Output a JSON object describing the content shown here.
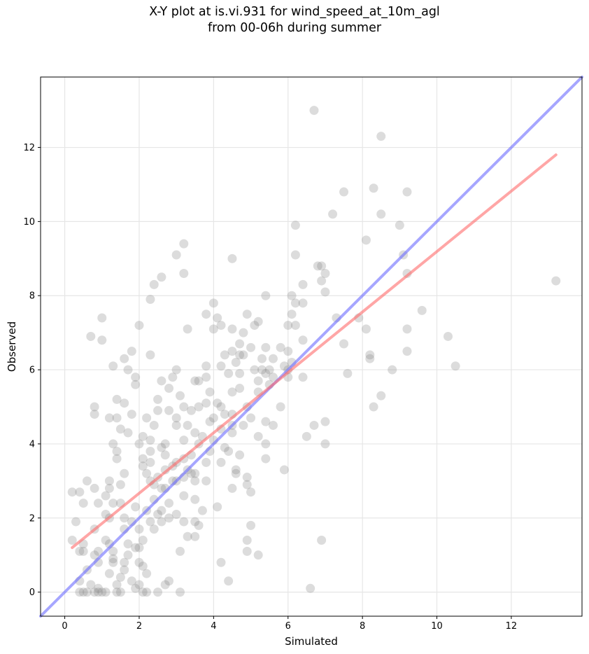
{
  "chart_data": {
    "type": "scatter",
    "title": "X-Y plot at is.vi.931 for wind_speed_at_10m_agl",
    "subtitle": "from 00-06h during summer",
    "xlabel": "Simulated",
    "ylabel": "Observed",
    "xlim": [
      -0.65,
      13.9
    ],
    "ylim": [
      -0.65,
      13.9
    ],
    "xticks": [
      0,
      2,
      4,
      6,
      8,
      10,
      12
    ],
    "yticks": [
      0,
      2,
      4,
      6,
      8,
      10,
      12
    ],
    "grid": true,
    "colors": {
      "points": "#808080",
      "regression": "#ff6b6b",
      "identity": "#6b6bff"
    },
    "regression_line": {
      "x": [
        0.2,
        13.2
      ],
      "y": [
        1.2,
        11.8
      ]
    },
    "identity_line": {
      "x": [
        -0.65,
        13.9
      ],
      "y": [
        -0.65,
        13.9
      ]
    },
    "points": [
      [
        6.7,
        13.0
      ],
      [
        8.5,
        12.3
      ],
      [
        8.3,
        10.9
      ],
      [
        7.5,
        10.8
      ],
      [
        9.2,
        10.8
      ],
      [
        7.2,
        10.2
      ],
      [
        8.5,
        10.2
      ],
      [
        6.2,
        9.9
      ],
      [
        9.0,
        9.9
      ],
      [
        8.1,
        9.5
      ],
      [
        3.2,
        9.4
      ],
      [
        3.0,
        9.1
      ],
      [
        6.2,
        9.1
      ],
      [
        9.1,
        9.1
      ],
      [
        4.5,
        9.0
      ],
      [
        6.8,
        8.8
      ],
      [
        6.9,
        8.8
      ],
      [
        7.0,
        8.6
      ],
      [
        9.2,
        8.6
      ],
      [
        3.2,
        8.6
      ],
      [
        2.6,
        8.5
      ],
      [
        13.2,
        8.4
      ],
      [
        6.9,
        8.4
      ],
      [
        2.4,
        8.3
      ],
      [
        6.4,
        8.3
      ],
      [
        7.0,
        8.1
      ],
      [
        5.4,
        8.0
      ],
      [
        6.1,
        8.0
      ],
      [
        2.3,
        7.9
      ],
      [
        6.2,
        7.8
      ],
      [
        6.4,
        7.8
      ],
      [
        4.0,
        7.8
      ],
      [
        9.6,
        7.6
      ],
      [
        4.9,
        7.5
      ],
      [
        3.8,
        7.5
      ],
      [
        6.1,
        7.5
      ],
      [
        1.0,
        7.4
      ],
      [
        4.1,
        7.4
      ],
      [
        7.3,
        7.4
      ],
      [
        7.9,
        7.4
      ],
      [
        5.2,
        7.3
      ],
      [
        6.0,
        7.2
      ],
      [
        6.2,
        7.2
      ],
      [
        2.0,
        7.2
      ],
      [
        4.2,
        7.2
      ],
      [
        5.1,
        7.2
      ],
      [
        3.3,
        7.1
      ],
      [
        4.0,
        7.1
      ],
      [
        4.5,
        7.1
      ],
      [
        8.1,
        7.1
      ],
      [
        9.2,
        7.1
      ],
      [
        4.8,
        7.0
      ],
      [
        0.7,
        6.9
      ],
      [
        10.3,
        6.9
      ],
      [
        1.0,
        6.8
      ],
      [
        6.4,
        6.8
      ],
      [
        4.7,
        6.7
      ],
      [
        7.5,
        6.7
      ],
      [
        5.4,
        6.6
      ],
      [
        5.8,
        6.6
      ],
      [
        5.0,
        6.6
      ],
      [
        1.8,
        6.5
      ],
      [
        4.5,
        6.5
      ],
      [
        6.0,
        6.5
      ],
      [
        9.2,
        6.5
      ],
      [
        2.3,
        6.4
      ],
      [
        4.7,
        6.4
      ],
      [
        8.2,
        6.4
      ],
      [
        4.3,
        6.4
      ],
      [
        4.8,
        6.4
      ],
      [
        5.6,
        6.3
      ],
      [
        5.3,
        6.3
      ],
      [
        1.6,
        6.3
      ],
      [
        8.2,
        6.3
      ],
      [
        4.6,
        6.2
      ],
      [
        3.8,
        6.1
      ],
      [
        6.1,
        6.2
      ],
      [
        5.9,
        6.1
      ],
      [
        1.3,
        6.1
      ],
      [
        10.5,
        6.1
      ],
      [
        4.2,
        6.1
      ],
      [
        3.0,
        6.0
      ],
      [
        5.1,
        6.0
      ],
      [
        8.8,
        6.0
      ],
      [
        5.5,
        6.0
      ],
      [
        1.7,
        6.0
      ],
      [
        4.7,
        5.9
      ],
      [
        5.3,
        6.0
      ],
      [
        6.0,
        6.0
      ],
      [
        7.6,
        5.9
      ],
      [
        4.4,
        5.9
      ],
      [
        5.6,
        5.8
      ],
      [
        2.9,
        5.8
      ],
      [
        1.9,
        5.8
      ],
      [
        3.8,
        5.8
      ],
      [
        5.4,
        5.9
      ],
      [
        6.0,
        5.8
      ],
      [
        6.4,
        5.8
      ],
      [
        3.5,
        5.7
      ],
      [
        3.6,
        5.7
      ],
      [
        2.6,
        5.7
      ],
      [
        5.2,
        5.7
      ],
      [
        1.9,
        5.6
      ],
      [
        5.5,
        5.6
      ],
      [
        4.7,
        5.5
      ],
      [
        2.8,
        5.5
      ],
      [
        5.2,
        5.4
      ],
      [
        4.5,
        5.4
      ],
      [
        3.9,
        5.4
      ],
      [
        8.5,
        5.3
      ],
      [
        3.1,
        5.3
      ],
      [
        1.4,
        5.2
      ],
      [
        2.5,
        5.2
      ],
      [
        1.6,
        5.1
      ],
      [
        3.8,
        5.1
      ],
      [
        4.1,
        5.1
      ],
      [
        4.2,
        5.0
      ],
      [
        5.8,
        5.0
      ],
      [
        8.3,
        5.0
      ],
      [
        0.8,
        5.0
      ],
      [
        3.2,
        5.0
      ],
      [
        3.6,
        5.0
      ],
      [
        4.9,
        5.0
      ],
      [
        2.8,
        4.9
      ],
      [
        2.5,
        4.9
      ],
      [
        3.4,
        4.9
      ],
      [
        4.3,
        4.8
      ],
      [
        4.5,
        4.8
      ],
      [
        0.8,
        4.8
      ],
      [
        1.8,
        4.8
      ],
      [
        2.2,
        4.7
      ],
      [
        3.0,
        4.7
      ],
      [
        4.0,
        4.7
      ],
      [
        1.2,
        4.7
      ],
      [
        5.0,
        4.7
      ],
      [
        1.4,
        4.7
      ],
      [
        3.9,
        4.6
      ],
      [
        5.4,
        4.6
      ],
      [
        7.0,
        4.6
      ],
      [
        4.5,
        4.5
      ],
      [
        6.7,
        4.5
      ],
      [
        2.4,
        4.5
      ],
      [
        3.3,
        4.5
      ],
      [
        3.0,
        4.5
      ],
      [
        5.6,
        4.5
      ],
      [
        4.8,
        4.5
      ],
      [
        4.2,
        4.4
      ],
      [
        1.5,
        4.4
      ],
      [
        3.5,
        4.3
      ],
      [
        4.5,
        4.3
      ],
      [
        1.7,
        4.3
      ],
      [
        2.1,
        4.2
      ],
      [
        3.7,
        4.2
      ],
      [
        5.2,
        4.2
      ],
      [
        6.5,
        4.2
      ],
      [
        3.2,
        4.1
      ],
      [
        2.3,
        4.1
      ],
      [
        4.0,
        4.1
      ],
      [
        2.0,
        4.0
      ],
      [
        7.0,
        4.0
      ],
      [
        1.3,
        4.0
      ],
      [
        3.6,
        4.0
      ],
      [
        2.7,
        4.0
      ],
      [
        5.4,
        4.0
      ],
      [
        2.6,
        3.9
      ],
      [
        4.3,
        3.9
      ],
      [
        3.9,
        3.8
      ],
      [
        1.4,
        3.8
      ],
      [
        2.3,
        3.8
      ],
      [
        4.4,
        3.8
      ],
      [
        3.4,
        3.7
      ],
      [
        4.7,
        3.7
      ],
      [
        2.7,
        3.7
      ],
      [
        3.2,
        3.6
      ],
      [
        1.4,
        3.6
      ],
      [
        2.1,
        3.6
      ],
      [
        5.4,
        3.6
      ],
      [
        2.3,
        3.5
      ],
      [
        3.0,
        3.5
      ],
      [
        4.2,
        3.5
      ],
      [
        3.8,
        3.5
      ],
      [
        2.1,
        3.4
      ],
      [
        2.9,
        3.4
      ],
      [
        3.3,
        3.3
      ],
      [
        5.9,
        3.3
      ],
      [
        2.7,
        3.3
      ],
      [
        4.6,
        3.3
      ],
      [
        1.6,
        3.2
      ],
      [
        2.2,
        3.2
      ],
      [
        3.5,
        3.2
      ],
      [
        3.4,
        3.2
      ],
      [
        4.6,
        3.2
      ],
      [
        2.5,
        3.1
      ],
      [
        3.2,
        3.1
      ],
      [
        4.9,
        3.1
      ],
      [
        2.9,
        3.0
      ],
      [
        3.5,
        3.0
      ],
      [
        3.8,
        3.0
      ],
      [
        1.2,
        3.0
      ],
      [
        2.3,
        3.0
      ],
      [
        0.6,
        3.0
      ],
      [
        3.0,
        3.0
      ],
      [
        2.4,
        2.9
      ],
      [
        1.5,
        2.9
      ],
      [
        4.9,
        2.9
      ],
      [
        0.2,
        2.7
      ],
      [
        0.4,
        2.7
      ],
      [
        1.2,
        2.8
      ],
      [
        0.8,
        2.8
      ],
      [
        2.7,
        2.8
      ],
      [
        2.6,
        2.8
      ],
      [
        4.5,
        2.8
      ],
      [
        5.0,
        2.7
      ],
      [
        3.2,
        2.6
      ],
      [
        1.1,
        2.6
      ],
      [
        2.4,
        2.5
      ],
      [
        3.5,
        2.5
      ],
      [
        2.8,
        2.4
      ],
      [
        0.5,
        2.4
      ],
      [
        1.5,
        2.4
      ],
      [
        0.9,
        2.4
      ],
      [
        1.3,
        2.4
      ],
      [
        1.9,
        2.3
      ],
      [
        4.1,
        2.3
      ],
      [
        2.2,
        2.2
      ],
      [
        2.6,
        2.2
      ],
      [
        3.7,
        2.2
      ],
      [
        3.0,
        2.1
      ],
      [
        1.1,
        2.1
      ],
      [
        2.5,
        2.1
      ],
      [
        1.2,
        2.0
      ],
      [
        2.8,
        2.0
      ],
      [
        1.6,
        2.0
      ],
      [
        2.3,
        1.9
      ],
      [
        3.2,
        1.9
      ],
      [
        3.5,
        1.9
      ],
      [
        0.3,
        1.9
      ],
      [
        1.8,
        1.9
      ],
      [
        2.6,
        1.9
      ],
      [
        3.6,
        1.8
      ],
      [
        5.0,
        1.8
      ],
      [
        1.6,
        1.7
      ],
      [
        0.8,
        1.7
      ],
      [
        2.0,
        1.7
      ],
      [
        2.4,
        1.7
      ],
      [
        3.3,
        1.5
      ],
      [
        3.5,
        1.5
      ],
      [
        0.2,
        1.4
      ],
      [
        1.1,
        1.4
      ],
      [
        2.1,
        1.4
      ],
      [
        4.9,
        1.4
      ],
      [
        6.9,
        1.4
      ],
      [
        0.5,
        1.3
      ],
      [
        1.2,
        1.3
      ],
      [
        1.7,
        1.3
      ],
      [
        1.9,
        1.2
      ],
      [
        2.0,
        1.2
      ],
      [
        0.4,
        1.1
      ],
      [
        3.1,
        1.1
      ],
      [
        4.9,
        1.1
      ],
      [
        0.5,
        1.1
      ],
      [
        0.9,
        1.1
      ],
      [
        1.3,
        1.1
      ],
      [
        1.7,
        1.0
      ],
      [
        5.2,
        1.0
      ],
      [
        0.8,
        1.0
      ],
      [
        1.3,
        0.9
      ],
      [
        1.6,
        0.8
      ],
      [
        0.9,
        0.8
      ],
      [
        2.0,
        0.8
      ],
      [
        4.2,
        0.8
      ],
      [
        1.3,
        0.8
      ],
      [
        2.1,
        0.7
      ],
      [
        1.6,
        0.6
      ],
      [
        0.6,
        0.6
      ],
      [
        1.2,
        0.5
      ],
      [
        2.2,
        0.5
      ],
      [
        1.5,
        0.4
      ],
      [
        1.8,
        0.3
      ],
      [
        4.4,
        0.3
      ],
      [
        2.8,
        0.3
      ],
      [
        0.4,
        0.3
      ],
      [
        1.4,
        0.2
      ],
      [
        0.7,
        0.2
      ],
      [
        2.0,
        0.2
      ],
      [
        1.9,
        0.1
      ],
      [
        2.7,
        0.2
      ],
      [
        6.6,
        0.1
      ],
      [
        0.4,
        0.0
      ],
      [
        0.5,
        0.0
      ],
      [
        0.6,
        0.0
      ],
      [
        0.8,
        0.0
      ],
      [
        0.9,
        0.0
      ],
      [
        1.1,
        0.0
      ],
      [
        1.4,
        0.0
      ],
      [
        1.5,
        0.0
      ],
      [
        2.1,
        0.0
      ],
      [
        2.2,
        0.0
      ],
      [
        2.5,
        0.0
      ],
      [
        3.1,
        0.0
      ],
      [
        0.9,
        0.1
      ],
      [
        1.0,
        0.0
      ]
    ]
  }
}
